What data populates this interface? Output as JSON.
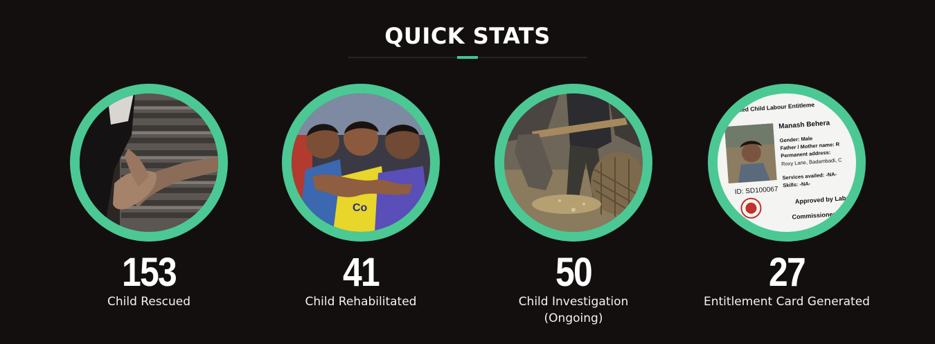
{
  "header": {
    "title": "QUICK STATS"
  },
  "colors": {
    "background": "#130f0e",
    "accent": "#4cc894",
    "text": "#ffffff"
  },
  "stats": [
    {
      "value": "153",
      "label": "Child Rescued",
      "image": "holding-hands-photo"
    },
    {
      "value": "41",
      "label": "Child Rehabilitated",
      "image": "children-group-photo"
    },
    {
      "value": "50",
      "label": "Child Investigation\n(Ongoing)",
      "image": "child-labour-photo"
    },
    {
      "value": "27",
      "label": "Entitlement Card Generated",
      "image": "entitlement-card-photo",
      "card": {
        "heading": "Rescued Child Labour Entitleme",
        "name": "Manash Behera",
        "gender": "Gender: Male",
        "parent": "Father / Mother name: R",
        "address_label": "Permanent address:",
        "address": "Roxy Lane, Badambadi, C",
        "services": "Services availed: -NA-",
        "skills": "Skills: -NA-",
        "id": "ID: SD100067",
        "approved": "Approved by Labo",
        "commissioner": "Commissioner:"
      }
    }
  ]
}
